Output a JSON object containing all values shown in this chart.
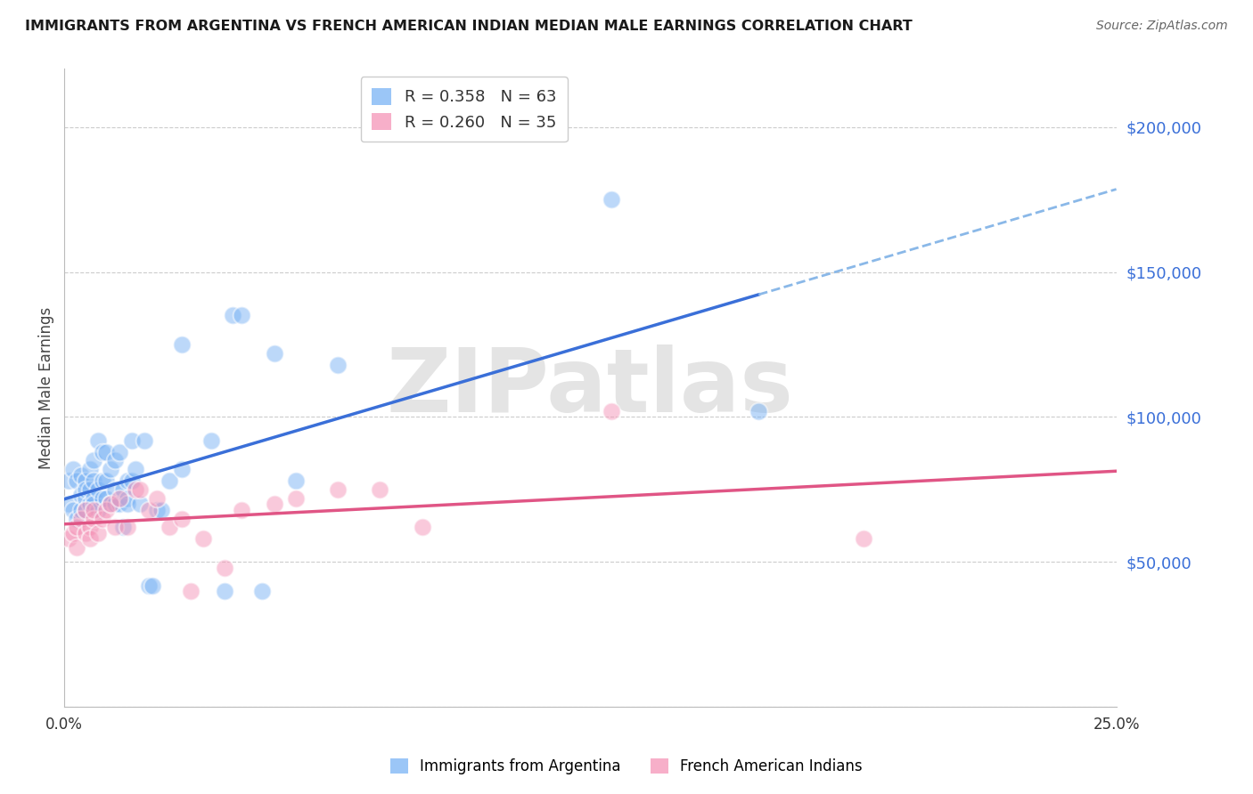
{
  "title": "IMMIGRANTS FROM ARGENTINA VS FRENCH AMERICAN INDIAN MEDIAN MALE EARNINGS CORRELATION CHART",
  "source": "Source: ZipAtlas.com",
  "ylabel": "Median Male Earnings",
  "xlim": [
    0,
    0.25
  ],
  "ylim": [
    0,
    220000
  ],
  "yticks": [
    0,
    50000,
    100000,
    150000,
    200000
  ],
  "ytick_labels": [
    "",
    "$50,000",
    "$100,000",
    "$150,000",
    "$200,000"
  ],
  "xtick_labels": [
    "0.0%",
    "25.0%"
  ],
  "background_color": "#ffffff",
  "grid_color": "#cccccc",
  "watermark": "ZIPatlas",
  "legend_r1": "R = 0.358",
  "legend_n1": "N = 63",
  "legend_r2": "R = 0.260",
  "legend_n2": "N = 35",
  "blue_color": "#7ab3f5",
  "pink_color": "#f595b8",
  "blue_line_color": "#3a6fd8",
  "pink_line_color": "#e05585",
  "ytick_color": "#3a6fd8",
  "argentina_label": "Immigrants from Argentina",
  "french_label": "French American Indians",
  "argentina_x": [
    0.001,
    0.001,
    0.002,
    0.002,
    0.003,
    0.003,
    0.004,
    0.004,
    0.004,
    0.005,
    0.005,
    0.005,
    0.005,
    0.006,
    0.006,
    0.006,
    0.007,
    0.007,
    0.007,
    0.007,
    0.008,
    0.008,
    0.008,
    0.009,
    0.009,
    0.009,
    0.01,
    0.01,
    0.01,
    0.011,
    0.011,
    0.012,
    0.012,
    0.012,
    0.013,
    0.013,
    0.014,
    0.014,
    0.015,
    0.015,
    0.015,
    0.016,
    0.016,
    0.017,
    0.018,
    0.019,
    0.02,
    0.021,
    0.022,
    0.023,
    0.025,
    0.028,
    0.028,
    0.035,
    0.038,
    0.04,
    0.042,
    0.047,
    0.05,
    0.055,
    0.065,
    0.13,
    0.165
  ],
  "argentina_y": [
    78000,
    70000,
    82000,
    68000,
    78000,
    65000,
    80000,
    73000,
    68000,
    78000,
    72000,
    75000,
    68000,
    82000,
    70000,
    75000,
    85000,
    78000,
    72000,
    70000,
    92000,
    75000,
    68000,
    88000,
    78000,
    72000,
    88000,
    78000,
    72000,
    70000,
    82000,
    85000,
    70000,
    75000,
    88000,
    70000,
    75000,
    62000,
    78000,
    72000,
    70000,
    92000,
    78000,
    82000,
    70000,
    92000,
    42000,
    42000,
    68000,
    68000,
    78000,
    82000,
    125000,
    92000,
    40000,
    135000,
    135000,
    40000,
    122000,
    78000,
    118000,
    175000,
    102000
  ],
  "french_x": [
    0.001,
    0.002,
    0.003,
    0.003,
    0.004,
    0.005,
    0.005,
    0.006,
    0.006,
    0.007,
    0.007,
    0.008,
    0.009,
    0.01,
    0.011,
    0.012,
    0.013,
    0.015,
    0.017,
    0.018,
    0.02,
    0.022,
    0.025,
    0.028,
    0.03,
    0.033,
    0.038,
    0.042,
    0.05,
    0.055,
    0.065,
    0.075,
    0.085,
    0.13,
    0.19
  ],
  "french_y": [
    58000,
    60000,
    62000,
    55000,
    65000,
    68000,
    60000,
    62000,
    58000,
    65000,
    68000,
    60000,
    65000,
    68000,
    70000,
    62000,
    72000,
    62000,
    75000,
    75000,
    68000,
    72000,
    62000,
    65000,
    40000,
    58000,
    48000,
    68000,
    70000,
    72000,
    75000,
    75000,
    62000,
    102000,
    58000
  ],
  "blue_dash_color": "#8ab8e8"
}
